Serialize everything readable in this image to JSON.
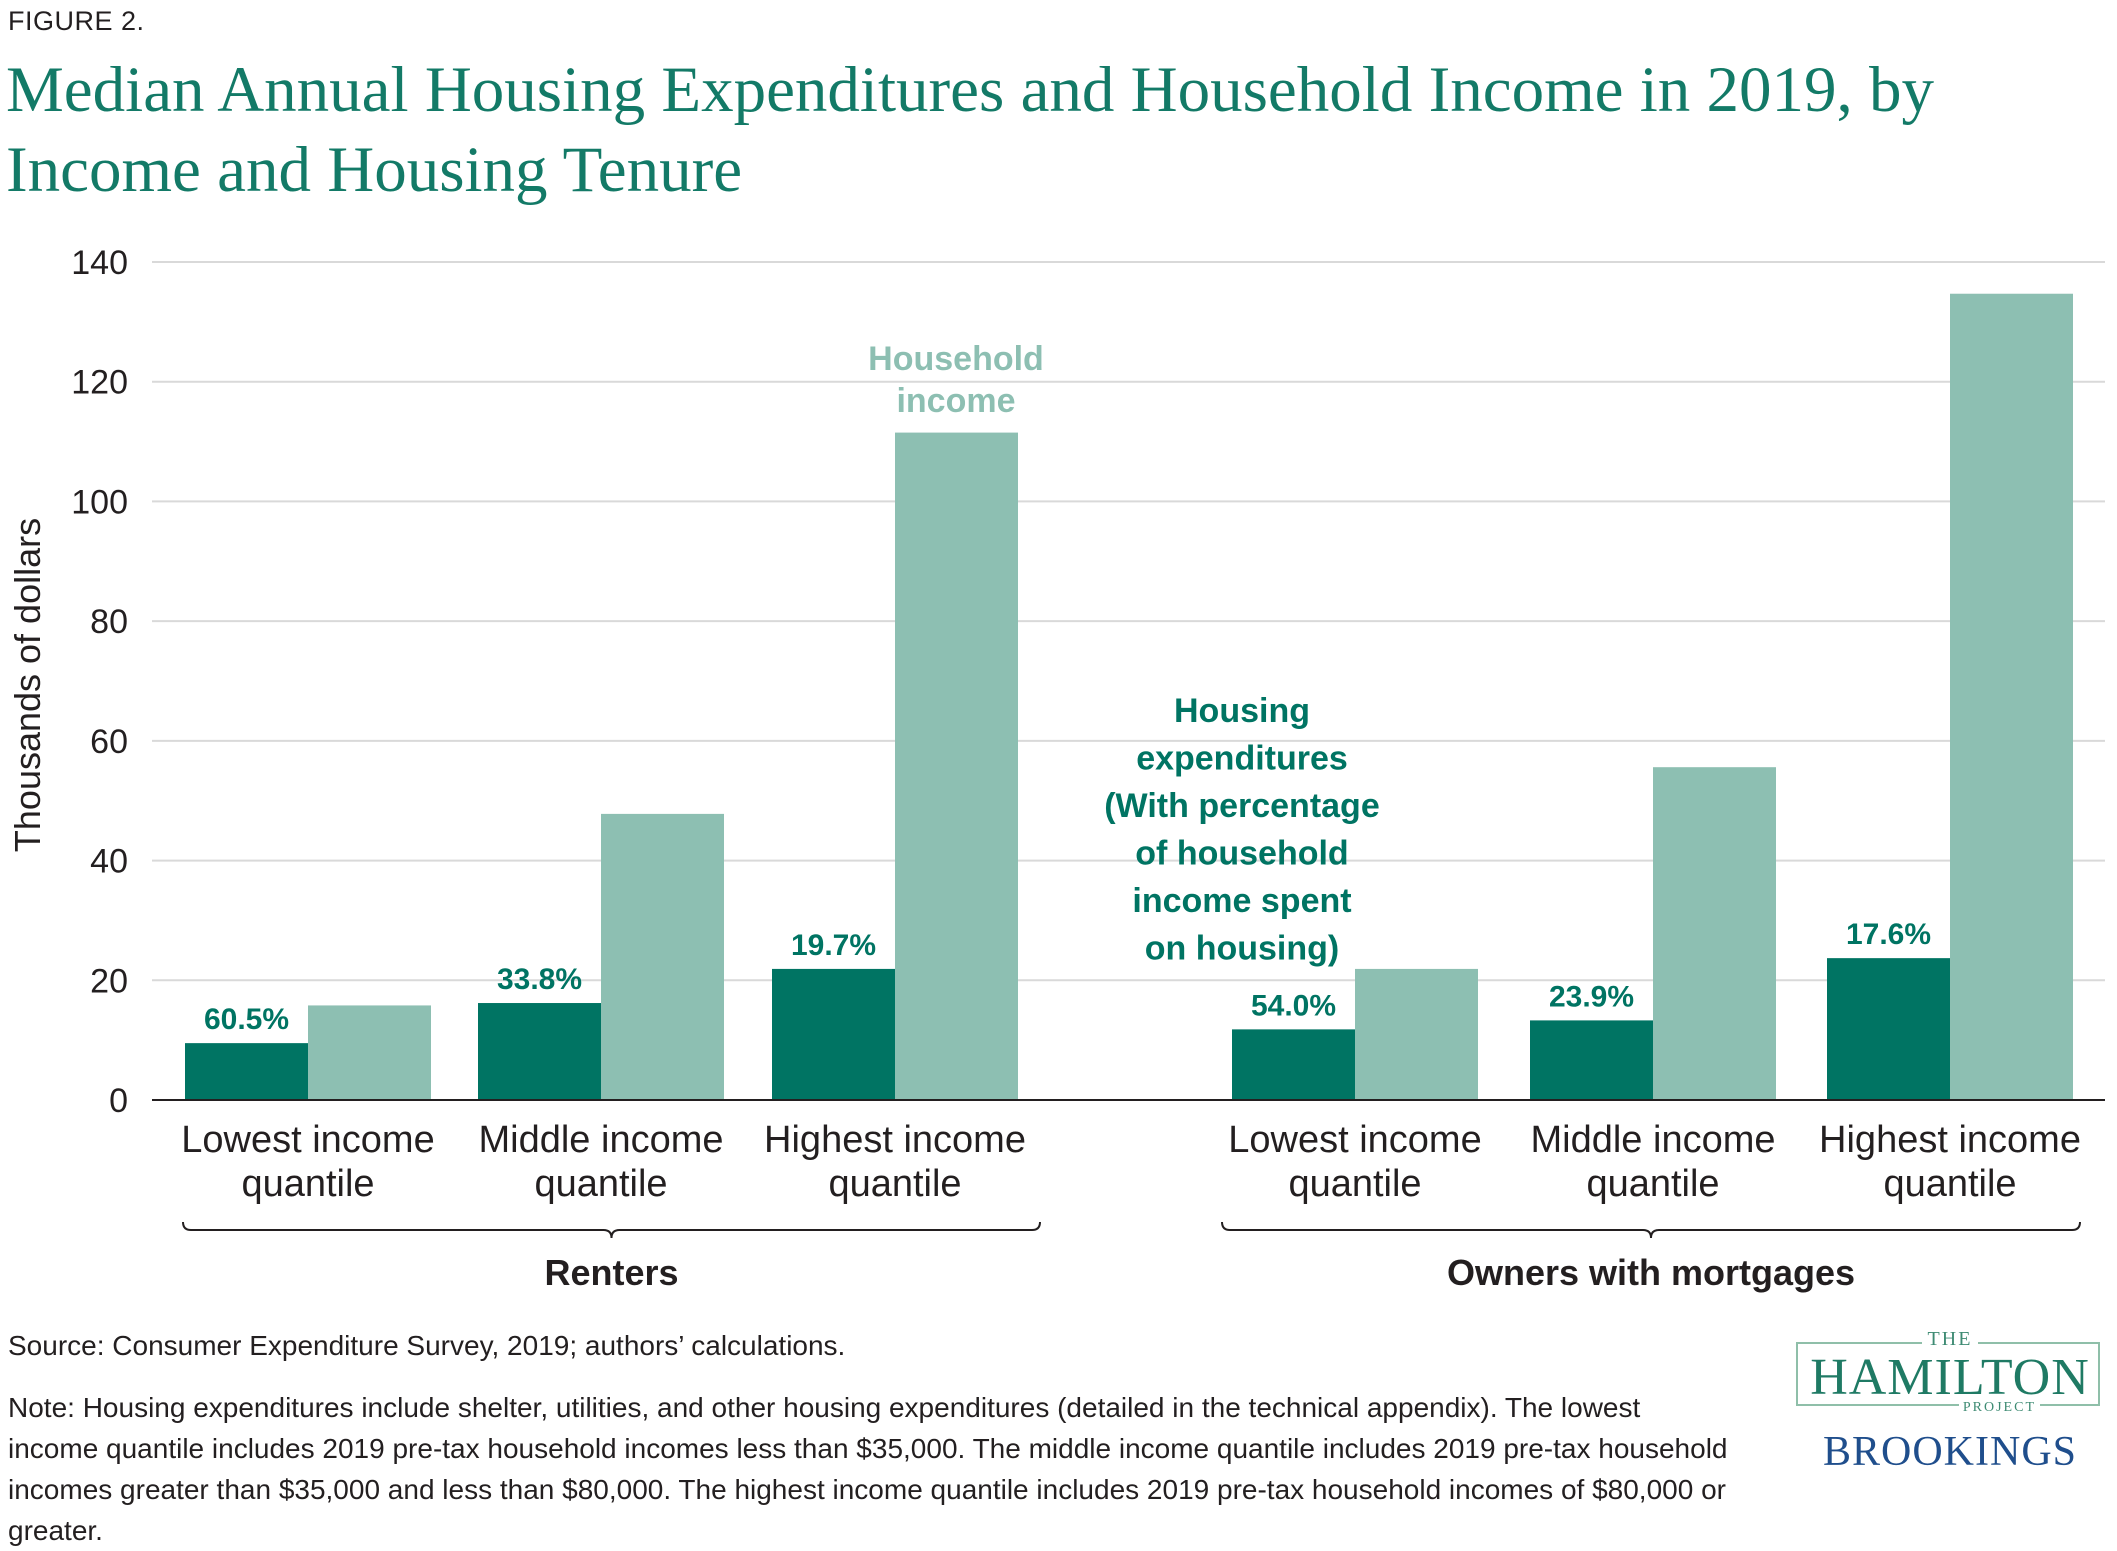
{
  "figure_label": "FIGURE 2.",
  "colors": {
    "expenditure": "#007463",
    "income": "#8dbfb2",
    "title": "#137a67",
    "grid": "#d9d9d9",
    "axis": "#231f20"
  },
  "chart_data": {
    "type": "bar",
    "title": "Median Annual Housing Expenditures and Household Income in 2019, by Income and Housing Tenure",
    "ylabel": "Thousands of dollars",
    "ylim": [
      0,
      140
    ],
    "yticks": [
      0,
      20,
      40,
      60,
      80,
      100,
      120,
      140
    ],
    "grid": true,
    "groups": [
      {
        "name": "Renters",
        "categories": [
          {
            "label_lines": [
              "Lowest income",
              "quantile"
            ],
            "expenditure": 9.5,
            "income": 15.8,
            "share_label": "60.5%"
          },
          {
            "label_lines": [
              "Middle income",
              "quantile"
            ],
            "expenditure": 16.2,
            "income": 47.8,
            "share_label": "33.8%"
          },
          {
            "label_lines": [
              "Highest income",
              "quantile"
            ],
            "expenditure": 21.9,
            "income": 111.5,
            "share_label": "19.7%"
          }
        ]
      },
      {
        "name": "Owners with mortgages",
        "categories": [
          {
            "label_lines": [
              "Lowest income",
              "quantile"
            ],
            "expenditure": 11.8,
            "income": 21.9,
            "share_label": "54.0%"
          },
          {
            "label_lines": [
              "Middle income",
              "quantile"
            ],
            "expenditure": 13.3,
            "income": 55.6,
            "share_label": "23.9%"
          },
          {
            "label_lines": [
              "Highest income",
              "quantile"
            ],
            "expenditure": 23.7,
            "income": 134.7,
            "share_label": "17.6%"
          }
        ]
      }
    ],
    "series": [
      {
        "name": "Housing expenditures (With percentage of household income spent on housing)",
        "key": "expenditure"
      },
      {
        "name": "Household income",
        "key": "income"
      }
    ],
    "annotations": {
      "income_lines": [
        "Household",
        "income"
      ],
      "expenditure_lines": [
        "Housing",
        "expenditures",
        "(With percentage",
        "of household",
        "income spent",
        "on housing)"
      ]
    }
  },
  "source": "Source:  Consumer Expenditure Survey, 2019; authors’ calculations.",
  "note": "Note: Housing expenditures include shelter, utilities, and other housing expenditures (detailed in the technical appendix). The lowest income quantile includes 2019 pre-tax household incomes less than $35,000. The middle income quantile includes 2019 pre-tax household incomes greater than $35,000 and less than $80,000. The highest income quantile includes 2019 pre-tax household incomes of $80,000 or greater.",
  "logo": {
    "the": "THE",
    "hamilton": "HAMILTON",
    "project": "PROJECT",
    "brookings": "BROOKINGS"
  }
}
